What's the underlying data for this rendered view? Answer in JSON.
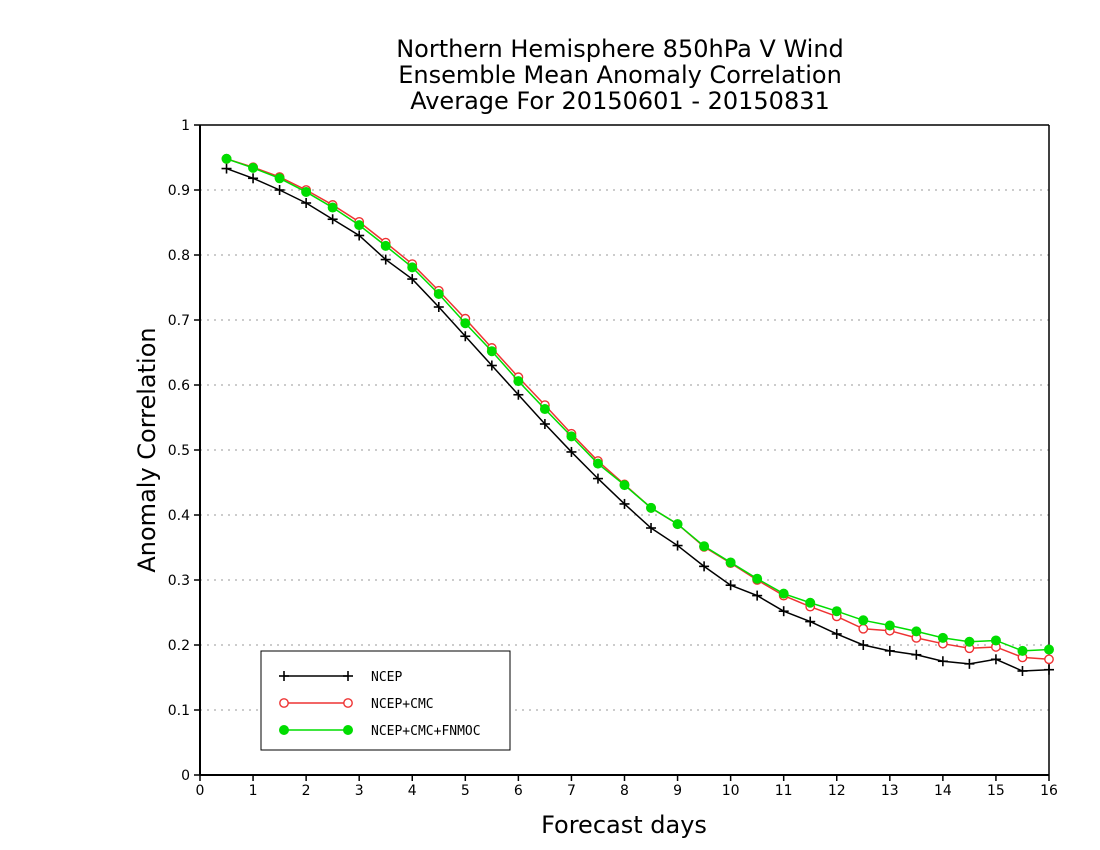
{
  "chart_data": {
    "type": "line",
    "title": [
      "Northern Hemisphere 850hPa V Wind",
      "Ensemble Mean Anomaly Correlation",
      "Average For 20150601 - 20150831"
    ],
    "xlabel": "Forecast days",
    "ylabel": "Anomaly Correlation",
    "xlim": [
      0,
      16
    ],
    "ylim": [
      0,
      1
    ],
    "x_ticks": [
      0,
      1,
      2,
      3,
      4,
      5,
      6,
      7,
      8,
      9,
      10,
      11,
      12,
      13,
      14,
      15,
      16
    ],
    "y_ticks": [
      0,
      0.1,
      0.2,
      0.3,
      0.4,
      0.5,
      0.6,
      0.7,
      0.8,
      0.9,
      1
    ],
    "y_tick_labels": [
      "0",
      "0.1",
      "0.2",
      "0.3",
      "0.4",
      "0.5",
      "0.6",
      "0.7",
      "0.8",
      "0.9",
      "1"
    ],
    "grid": "horizontal dotted",
    "legend_position": "bottom-left",
    "x": [
      0.5,
      1,
      1.5,
      2,
      2.5,
      3,
      3.5,
      4,
      4.5,
      5,
      5.5,
      6,
      6.5,
      7,
      7.5,
      8,
      8.5,
      9,
      9.5,
      10,
      10.5,
      11,
      11.5,
      12,
      12.5,
      13,
      13.5,
      14,
      14.5,
      15,
      15.5,
      16
    ],
    "series": [
      {
        "name": "NCEP",
        "color": "#000000",
        "marker": "plus",
        "values": [
          0.933,
          0.918,
          0.9,
          0.88,
          0.855,
          0.83,
          0.793,
          0.763,
          0.72,
          0.675,
          0.63,
          0.585,
          0.54,
          0.497,
          0.456,
          0.417,
          0.38,
          0.353,
          0.321,
          0.292,
          0.276,
          0.252,
          0.236,
          0.217,
          0.2,
          0.191,
          0.185,
          0.175,
          0.171,
          0.178,
          0.16,
          0.162
        ]
      },
      {
        "name": "NCEP+CMC",
        "color": "#ee3333",
        "marker": "open-circle",
        "values": [
          0.948,
          0.935,
          0.92,
          0.9,
          0.877,
          0.851,
          0.819,
          0.786,
          0.745,
          0.702,
          0.657,
          0.612,
          0.569,
          0.525,
          0.483,
          0.447,
          0.411,
          0.386,
          0.351,
          0.326,
          0.3,
          0.276,
          0.259,
          0.244,
          0.225,
          0.222,
          0.211,
          0.202,
          0.195,
          0.197,
          0.181,
          0.178
        ]
      },
      {
        "name": "NCEP+CMC+FNMOC",
        "color": "#00dd00",
        "marker": "filled-circle",
        "values": [
          0.948,
          0.934,
          0.918,
          0.897,
          0.873,
          0.846,
          0.814,
          0.781,
          0.74,
          0.695,
          0.652,
          0.606,
          0.563,
          0.521,
          0.479,
          0.446,
          0.411,
          0.386,
          0.352,
          0.327,
          0.302,
          0.279,
          0.265,
          0.252,
          0.238,
          0.23,
          0.221,
          0.211,
          0.205,
          0.207,
          0.191,
          0.193
        ]
      }
    ]
  }
}
